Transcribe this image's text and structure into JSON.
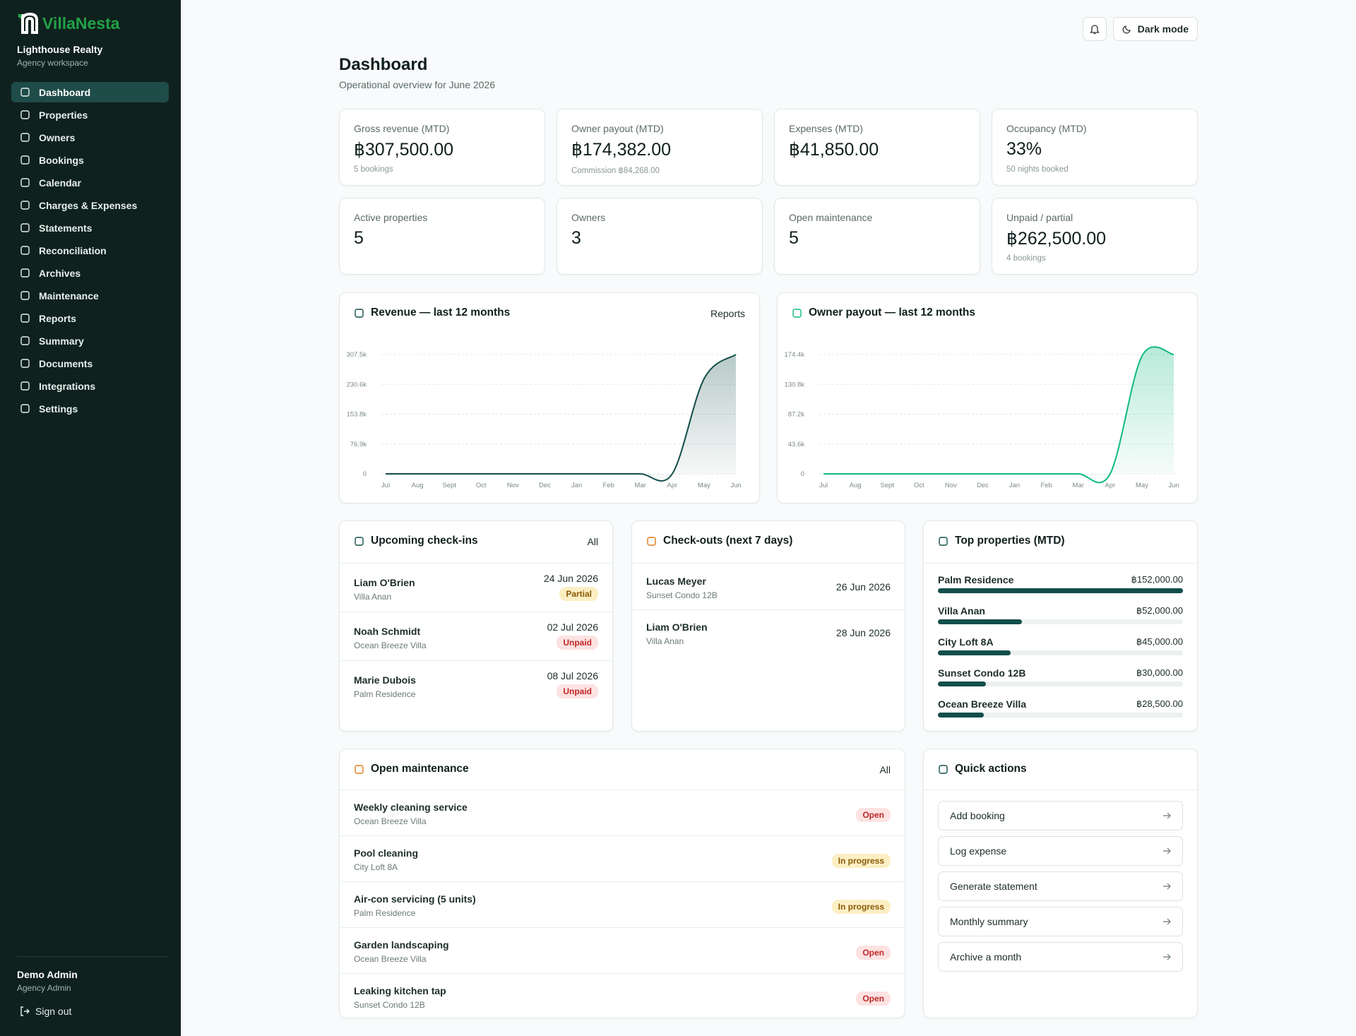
{
  "brand": {
    "name": "VillaNesta",
    "org": "Lighthouse Realty",
    "workspace": "Agency workspace"
  },
  "nav": [
    "Dashboard",
    "Properties",
    "Owners",
    "Bookings",
    "Calendar",
    "Charges & Expenses",
    "Statements",
    "Reconciliation",
    "Archives",
    "Maintenance",
    "Reports",
    "Summary",
    "Documents",
    "Integrations",
    "Settings"
  ],
  "user": {
    "name": "Demo Admin",
    "role": "Agency Admin",
    "sign_out": "Sign out"
  },
  "topbar": {
    "dark_mode": "Dark mode"
  },
  "header": {
    "title": "Dashboard",
    "subtitle": "Operational overview for June 2026"
  },
  "kpis": [
    {
      "label": "Gross revenue (MTD)",
      "value": "฿307,500.00",
      "note": "5 bookings"
    },
    {
      "label": "Owner payout (MTD)",
      "value": "฿174,382.00",
      "note": "Commission ฿84,268.00"
    },
    {
      "label": "Expenses (MTD)",
      "value": "฿41,850.00"
    },
    {
      "label": "Occupancy (MTD)",
      "value": "33%",
      "note": "50 nights booked"
    },
    {
      "label": "Active properties",
      "value": "5"
    },
    {
      "label": "Owners",
      "value": "3"
    },
    {
      "label": "Open maintenance",
      "value": "5"
    },
    {
      "label": "Unpaid / partial",
      "value": "฿262,500.00",
      "note": "4 bookings"
    }
  ],
  "chart_data": [
    {
      "type": "line",
      "title": "Revenue — last 12 months",
      "link": "Reports",
      "color": "#134e4a",
      "categories": [
        "Jul",
        "Aug",
        "Sept",
        "Oct",
        "Nov",
        "Dec",
        "Jan",
        "Feb",
        "Mar",
        "Apr",
        "May",
        "Jun"
      ],
      "values": [
        0,
        0,
        0,
        0,
        0,
        0,
        0,
        0,
        0,
        0,
        245000,
        307500
      ],
      "ylim": [
        0,
        307500
      ],
      "yticks": [
        0,
        {
          "value": 76875,
          "label": "76.9k"
        },
        {
          "value": 153750,
          "label": "153.8k"
        },
        {
          "value": 230625,
          "label": "230.6k"
        },
        {
          "value": 307500,
          "label": "307.5k"
        }
      ],
      "grid": true
    },
    {
      "type": "line",
      "title": "Owner payout — last 12 months",
      "color": "#10b981",
      "categories": [
        "Jul",
        "Aug",
        "Sept",
        "Oct",
        "Nov",
        "Dec",
        "Jan",
        "Feb",
        "Mar",
        "Apr",
        "May",
        "Jun"
      ],
      "values": [
        0,
        0,
        0,
        0,
        0,
        0,
        0,
        0,
        0,
        0,
        172000,
        174382
      ],
      "ylim": [
        0,
        174382
      ],
      "yticks": [
        0,
        {
          "value": 43595.5,
          "label": "43.6k"
        },
        {
          "value": 87191,
          "label": "87.2k"
        },
        {
          "value": 130786.5,
          "label": "130.8k"
        },
        {
          "value": 174382,
          "label": "174.4k"
        }
      ],
      "grid": true
    }
  ],
  "checkins": {
    "title": "Upcoming check-ins",
    "link": "All",
    "rows": [
      {
        "guest": "Liam O'Brien",
        "property": "Villa Anan",
        "date": "24 Jun 2026",
        "status": "Partial"
      },
      {
        "guest": "Noah Schmidt",
        "property": "Ocean Breeze Villa",
        "date": "02 Jul 2026",
        "status": "Unpaid"
      },
      {
        "guest": "Marie Dubois",
        "property": "Palm Residence",
        "date": "08 Jul 2026",
        "status": "Unpaid"
      }
    ]
  },
  "checkouts": {
    "title": "Check-outs (next 7 days)",
    "rows": [
      {
        "guest": "Lucas Meyer",
        "property": "Sunset Condo 12B",
        "date": "26 Jun 2026"
      },
      {
        "guest": "Liam O'Brien",
        "property": "Villa Anan",
        "date": "28 Jun 2026"
      }
    ]
  },
  "top_properties": {
    "title": "Top properties (MTD)",
    "color": "#134e4a",
    "items": [
      {
        "name": "Palm Residence",
        "value": 152000,
        "label": "฿152,000.00"
      },
      {
        "name": "Villa Anan",
        "value": 52000,
        "label": "฿52,000.00"
      },
      {
        "name": "City Loft 8A",
        "value": 45000,
        "label": "฿45,000.00"
      },
      {
        "name": "Sunset Condo 12B",
        "value": 30000,
        "label": "฿30,000.00"
      },
      {
        "name": "Ocean Breeze Villa",
        "value": 28500,
        "label": "฿28,500.00"
      }
    ]
  },
  "maintenance": {
    "title": "Open maintenance",
    "link": "All",
    "rows": [
      {
        "task": "Weekly cleaning service",
        "property": "Ocean Breeze Villa",
        "status": "Open"
      },
      {
        "task": "Pool cleaning",
        "property": "City Loft 8A",
        "status": "In progress"
      },
      {
        "task": "Air-con servicing (5 units)",
        "property": "Palm Residence",
        "status": "In progress"
      },
      {
        "task": "Garden landscaping",
        "property": "Ocean Breeze Villa",
        "status": "Open"
      },
      {
        "task": "Leaking kitchen tap",
        "property": "Sunset Condo 12B",
        "status": "Open"
      }
    ]
  },
  "quick_actions": {
    "title": "Quick actions",
    "items": [
      "Add booking",
      "Log expense",
      "Generate statement",
      "Monthly summary",
      "Archive a month"
    ]
  }
}
